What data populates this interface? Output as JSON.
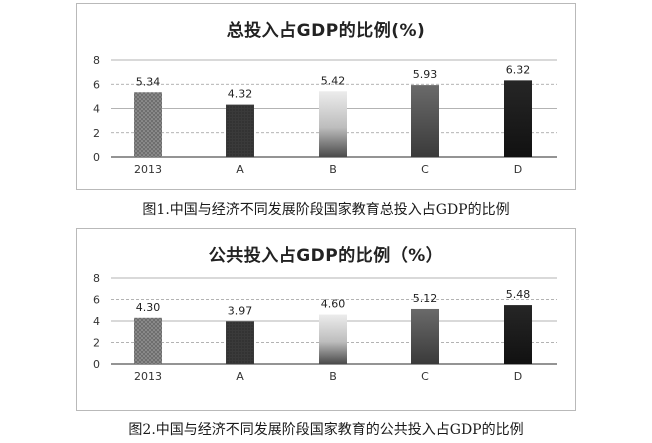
{
  "chart_data": [
    {
      "type": "bar",
      "title": "总投入占GDP的比例(%)",
      "categories": [
        "2013",
        "A",
        "B",
        "C",
        "D"
      ],
      "values": [
        5.34,
        4.32,
        5.42,
        5.93,
        6.32
      ],
      "data_labels": [
        "5.34",
        "4.32",
        "5.42",
        "5.93",
        "6.32"
      ],
      "y_ticks": [
        "0",
        "2",
        "4",
        "6",
        "8"
      ],
      "ylim": [
        0,
        8
      ],
      "grid": true,
      "legend": "none",
      "bar_styles": [
        "dotted-gray",
        "dark-gray",
        "light-gradient",
        "mid-gray",
        "black"
      ]
    },
    {
      "type": "bar",
      "title": "公共投入占GDP的比例（%）",
      "categories": [
        "2013",
        "A",
        "B",
        "C",
        "D"
      ],
      "values": [
        4.3,
        3.97,
        4.6,
        5.12,
        5.48
      ],
      "data_labels": [
        "4.30",
        "3.97",
        "4.60",
        "5.12",
        "5.48"
      ],
      "y_ticks": [
        "0",
        "2",
        "4",
        "6",
        "8"
      ],
      "ylim": [
        0,
        8
      ],
      "grid": true,
      "legend": "none",
      "bar_styles": [
        "dotted-gray",
        "dark-gray",
        "light-gradient",
        "mid-gray",
        "black"
      ]
    }
  ],
  "captions": [
    "图1.中国与经济不同发展阶段国家教育总投入占GDP的比例",
    "图2.中国与经济不同发展阶段国家教育的公共投入占GDP的比例"
  ],
  "colors": {
    "dotted-gray": "#6e6e6e",
    "dark-gray": "#3a3a3a",
    "light-gradient": "#d8d8d8",
    "mid-gray": "#555555",
    "black": "#111111",
    "grid": "#9a9a9a",
    "baseline": "#555555"
  }
}
